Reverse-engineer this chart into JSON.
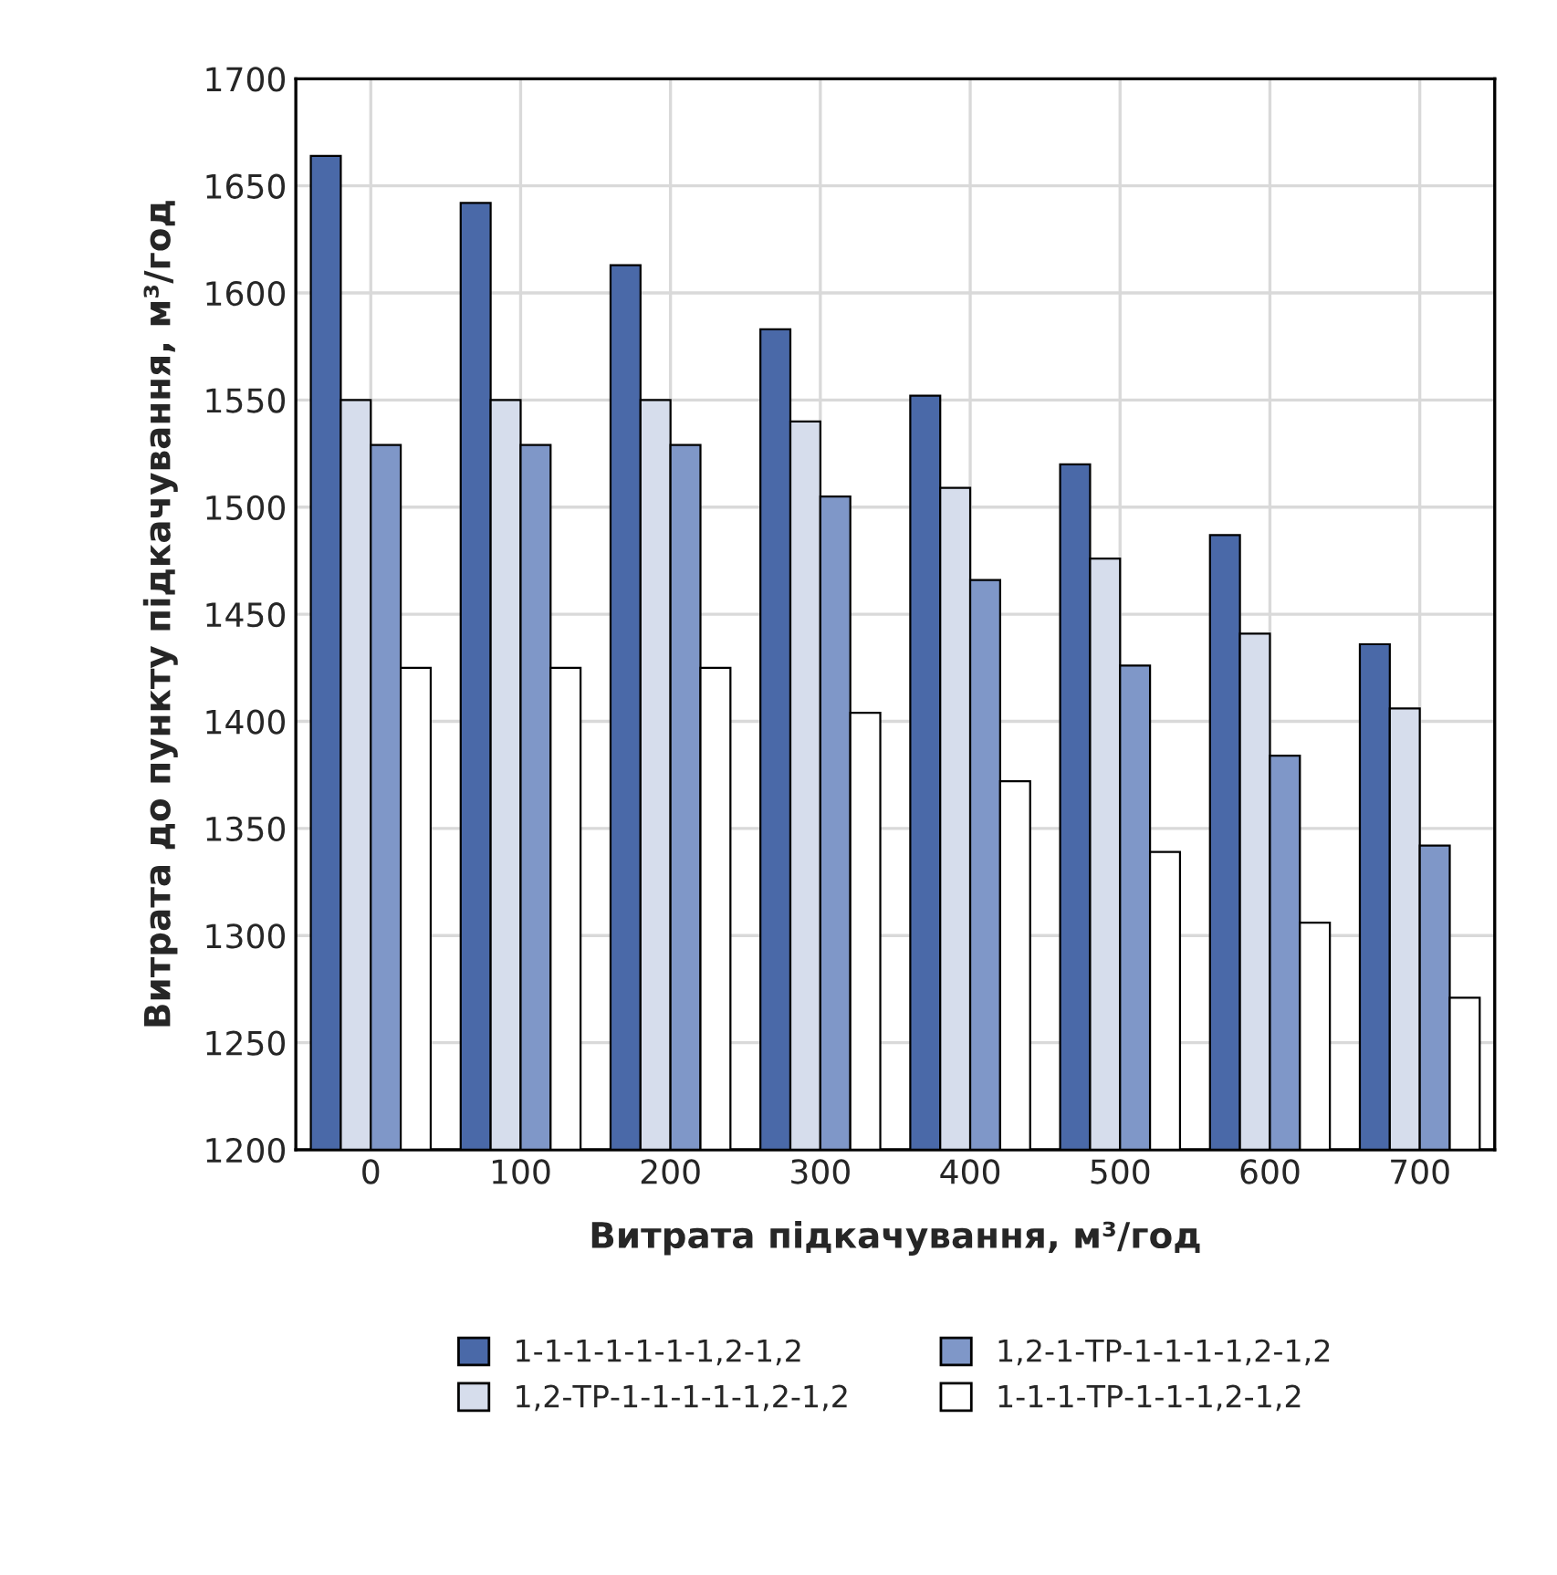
{
  "chart_data": {
    "type": "bar",
    "xlabel": "Витрата підкачування, м³/год",
    "ylabel": "Витрата до пункту підкачування, м³/год",
    "categories": [
      "0",
      "100",
      "200",
      "300",
      "400",
      "500",
      "600",
      "700"
    ],
    "series": [
      {
        "name": "1-1-1-1-1-1-1,2-1,2",
        "color": "#4a69a8",
        "values": [
          1664,
          1642,
          1613,
          1583,
          1552,
          1520,
          1487,
          1436
        ]
      },
      {
        "name": "1,2-ТР-1-1-1-1-1,2-1,2",
        "color": "#d6ddec",
        "values": [
          1550,
          1550,
          1550,
          1540,
          1509,
          1476,
          1441,
          1406
        ]
      },
      {
        "name": "1,2-1-ТР-1-1-1-1,2-1,2",
        "color": "#7f97c8",
        "values": [
          1529,
          1529,
          1529,
          1505,
          1466,
          1426,
          1384,
          1342
        ]
      },
      {
        "name": "1-1-1-ТР-1-1-1,2-1,2",
        "color": "#ffffff",
        "values": [
          1425,
          1425,
          1425,
          1404,
          1372,
          1339,
          1306,
          1271
        ]
      }
    ],
    "ylim": [
      1200,
      1700
    ],
    "yticks": [
      1200,
      1250,
      1300,
      1350,
      1400,
      1450,
      1500,
      1550,
      1600,
      1650,
      1700
    ],
    "grid": true,
    "legend": "bottom"
  }
}
